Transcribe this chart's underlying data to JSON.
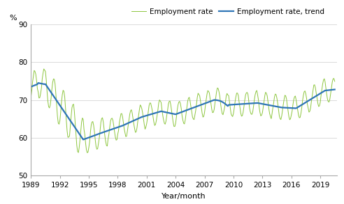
{
  "ylabel": "%",
  "xlabel": "Year/month",
  "ylim": [
    50,
    90
  ],
  "yticks": [
    50,
    60,
    70,
    80,
    90
  ],
  "xlim_start": 1989.0,
  "xlim_end": 2020.75,
  "xticks": [
    1989,
    1992,
    1995,
    1998,
    2001,
    2004,
    2007,
    2010,
    2013,
    2016,
    2019
  ],
  "legend_labels": [
    "Employment rate",
    "Employment rate, trend"
  ],
  "line_color_raw": "#8DC63F",
  "line_color_trend": "#2E75B6",
  "figsize": [
    4.92,
    2.93
  ],
  "dpi": 100,
  "grid_color": "#CCCCCC",
  "spine_color": "#AAAAAA"
}
